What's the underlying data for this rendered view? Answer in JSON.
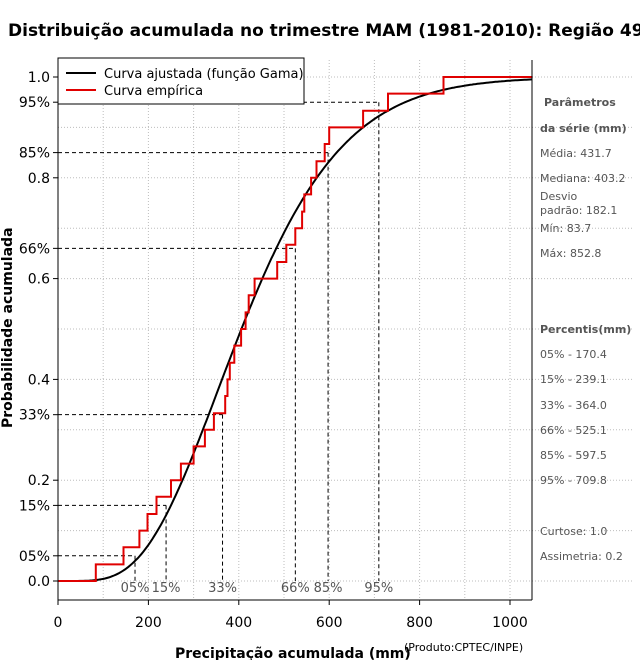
{
  "chart_data": {
    "type": "line",
    "title": "Distribuição acumulada no trimestre MAM (1981-2010): Região 49",
    "xlabel": "Precipitação acumulada (mm)",
    "ylabel": "Probabilidade acumulada",
    "xlim": [
      0,
      1050
    ],
    "ylim": [
      -0.02,
      1.02
    ],
    "x_ticks": [
      0,
      200,
      400,
      600,
      800,
      1000
    ],
    "x_tick_labels": [
      "0",
      "200",
      "400",
      "600",
      "800",
      "1000"
    ],
    "y_ticks": [
      0.0,
      0.05,
      0.15,
      0.2,
      0.33,
      0.4,
      0.6,
      0.66,
      0.8,
      0.85,
      0.95,
      1.0
    ],
    "y_tick_labels": [
      "0.0",
      "05%",
      "15%",
      "0.2",
      "33%",
      "0.4",
      "0.6",
      "66%",
      "0.8",
      "85%",
      "95%",
      "1.0"
    ],
    "grid": true,
    "legend": {
      "position": "top-left",
      "entries": [
        {
          "label": "Curva ajustada (função Gama)",
          "color": "#000000"
        },
        {
          "label": "Curva empírica",
          "color": "#e00000"
        }
      ]
    },
    "series": [
      {
        "name": "Curva ajustada (função Gama)",
        "color": "#000000",
        "kind": "gamma_cdf",
        "shape": 5.6,
        "scale": 77
      },
      {
        "name": "Curva empírica",
        "color": "#e00000",
        "kind": "step",
        "points": [
          [
            0,
            0.0
          ],
          [
            83.7,
            0.033
          ],
          [
            145,
            0.067
          ],
          [
            180,
            0.1
          ],
          [
            198,
            0.133
          ],
          [
            218,
            0.167
          ],
          [
            250,
            0.2
          ],
          [
            272,
            0.233
          ],
          [
            300,
            0.267
          ],
          [
            325,
            0.3
          ],
          [
            345,
            0.333
          ],
          [
            370,
            0.367
          ],
          [
            375,
            0.4
          ],
          [
            380,
            0.433
          ],
          [
            390,
            0.467
          ],
          [
            405,
            0.5
          ],
          [
            415,
            0.533
          ],
          [
            422,
            0.567
          ],
          [
            435,
            0.6
          ],
          [
            485,
            0.633
          ],
          [
            505,
            0.667
          ],
          [
            525,
            0.7
          ],
          [
            540,
            0.733
          ],
          [
            545,
            0.767
          ],
          [
            560,
            0.8
          ],
          [
            572,
            0.833
          ],
          [
            590,
            0.867
          ],
          [
            600,
            0.9
          ],
          [
            675,
            0.933
          ],
          [
            730,
            0.967
          ],
          [
            852.8,
            1.0
          ],
          [
            1050,
            1.0
          ]
        ]
      }
    ],
    "percentiles": [
      {
        "label": "05%",
        "p": 0.05,
        "value": 170.4
      },
      {
        "label": "15%",
        "p": 0.15,
        "value": 239.1
      },
      {
        "label": "33%",
        "p": 0.33,
        "value": 364.0
      },
      {
        "label": "66%",
        "p": 0.66,
        "value": 525.1
      },
      {
        "label": "85%",
        "p": 0.85,
        "value": 597.5
      },
      {
        "label": "95%",
        "p": 0.95,
        "value": 709.8
      }
    ]
  },
  "side_panel": {
    "params_title_1": "Parâmetros",
    "params_title_2": "da série (mm)",
    "media": "Média: 431.7",
    "mediana": "Mediana: 403.2",
    "desvio_1": "Desvio",
    "desvio_2": "padrão: 182.1",
    "min": "Mín: 83.7",
    "max": "Máx: 852.8",
    "percentis_title": "Percentis(mm)",
    "percentis": [
      "05% - 170.4",
      "15% - 239.1",
      "33% - 364.0",
      "66% - 525.1",
      "85% - 597.5",
      "95% - 709.8"
    ],
    "curtose": "Curtose: 1.0",
    "assimetria": "Assimetria: 0.2"
  },
  "credit": "(Produto:CPTEC/INPE)"
}
